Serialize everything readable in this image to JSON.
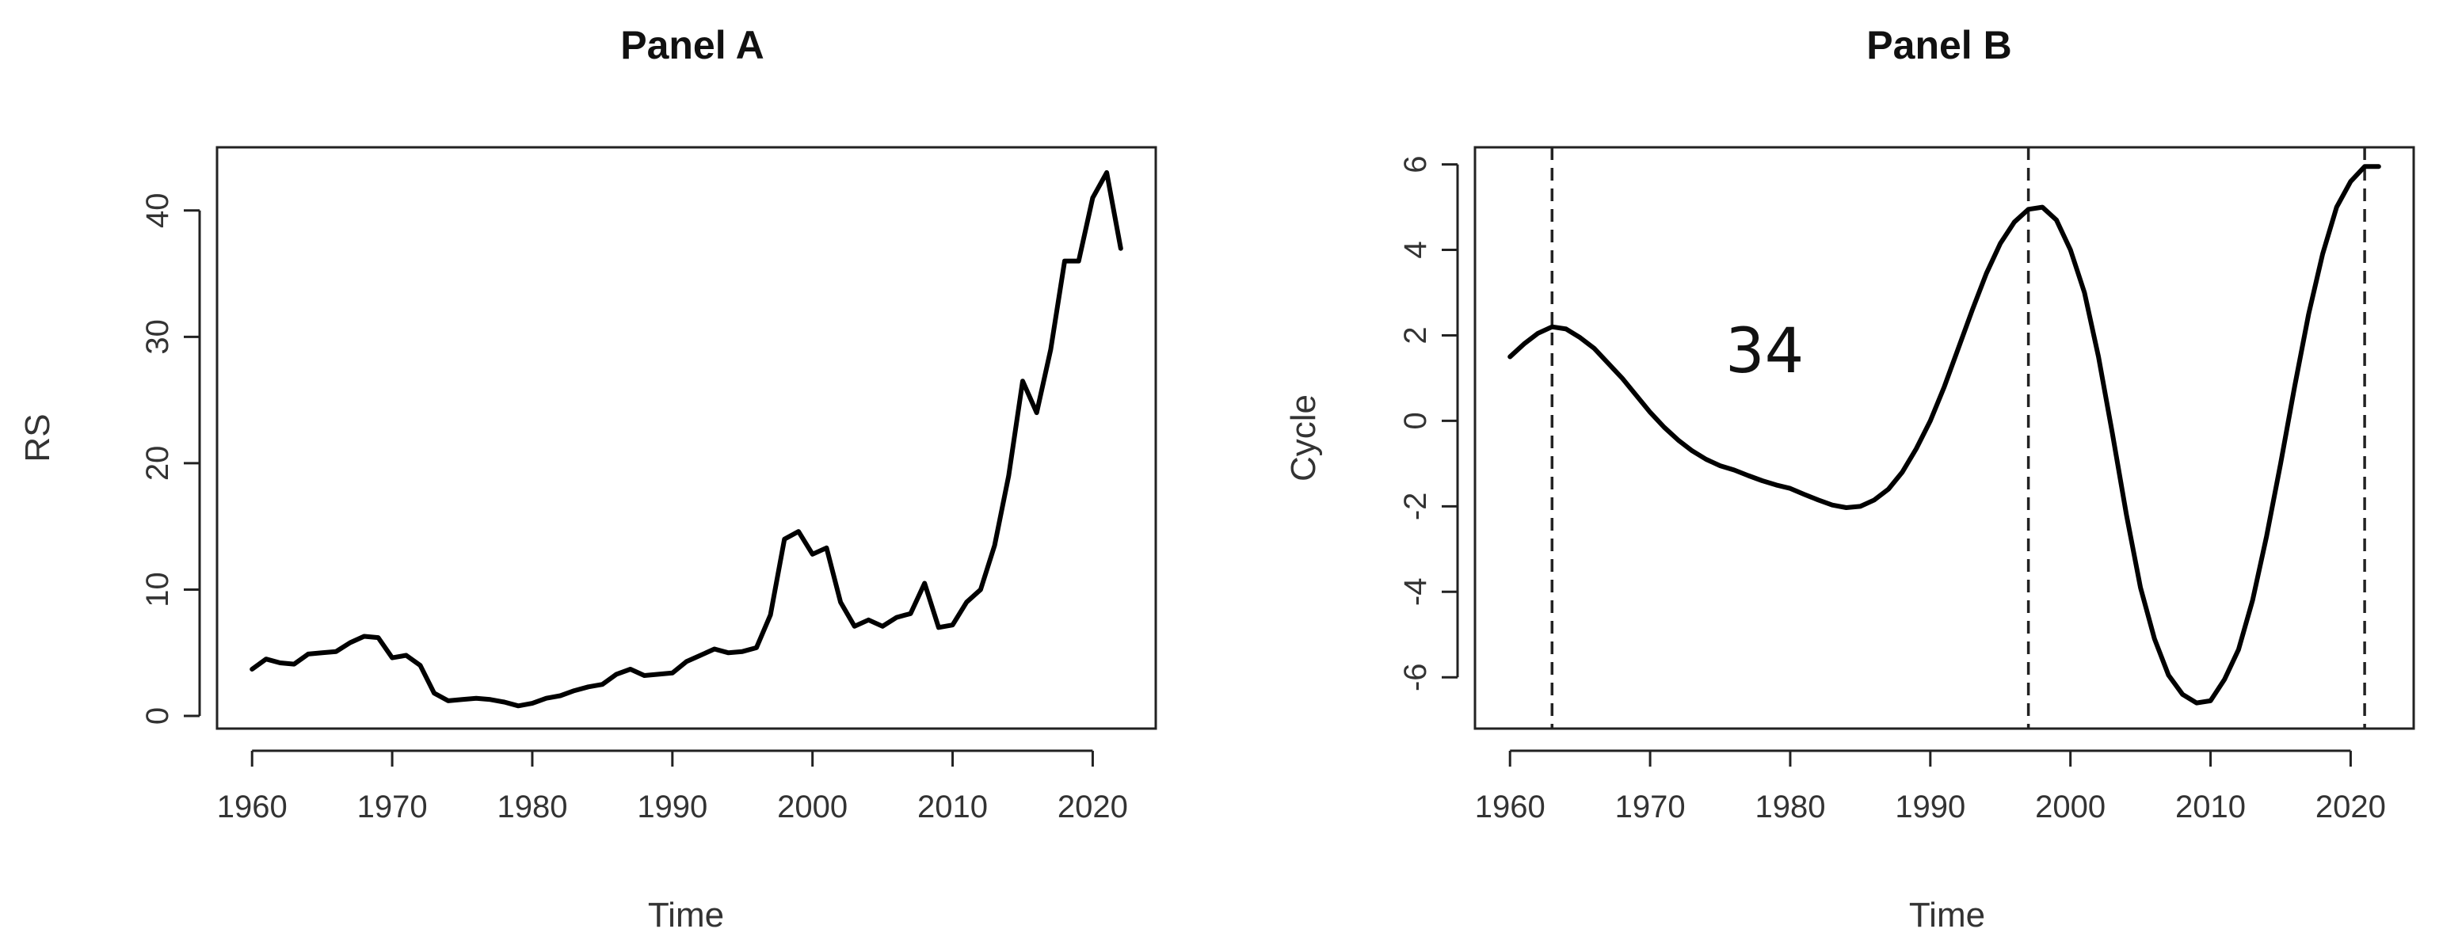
{
  "chart_data": [
    {
      "type": "line",
      "title": "Panel A",
      "xlabel": "Time",
      "ylabel": "RS",
      "xlim": [
        1957.5,
        2024.5
      ],
      "ylim": [
        -1,
        45
      ],
      "xticks": [
        1960,
        1970,
        1980,
        1990,
        2000,
        2010,
        2020
      ],
      "yticks": [
        0,
        10,
        20,
        30,
        40
      ],
      "grid": false,
      "series": [
        {
          "x": [
            1960,
            1961,
            1962,
            1963,
            1964,
            1965,
            1966,
            1967,
            1968,
            1969,
            1970,
            1971,
            1972,
            1973,
            1974,
            1975,
            1976,
            1977,
            1978,
            1979,
            1980,
            1981,
            1982,
            1983,
            1984,
            1985,
            1986,
            1987,
            1988,
            1989,
            1990,
            1991,
            1992,
            1993,
            1994,
            1995,
            1996,
            1997,
            1998,
            1999,
            2000,
            2001,
            2002,
            2003,
            2004,
            2005,
            2006,
            2007,
            2008,
            2009,
            2010,
            2011,
            2012,
            2013,
            2014,
            2015,
            2016,
            2017,
            2018,
            2019,
            2020,
            2021,
            2022
          ],
          "values": [
            3.7,
            4.5,
            4.2,
            4.1,
            4.9,
            5.0,
            5.1,
            5.8,
            6.3,
            6.2,
            4.6,
            4.8,
            4.0,
            1.8,
            1.2,
            1.3,
            1.4,
            1.3,
            1.1,
            0.8,
            1.0,
            1.4,
            1.6,
            2.0,
            2.3,
            2.5,
            3.3,
            3.7,
            3.2,
            3.3,
            3.4,
            4.3,
            4.8,
            5.3,
            5.0,
            5.1,
            5.4,
            8.0,
            14.0,
            14.6,
            12.8,
            13.3,
            9.0,
            7.1,
            7.6,
            7.1,
            7.8,
            8.1,
            10.5,
            7.0,
            7.2,
            9.0,
            10.0,
            13.5,
            19.0,
            26.5,
            24.0,
            29.0,
            36.0,
            36.0,
            41.0,
            43.0,
            37.0
          ]
        }
      ]
    },
    {
      "type": "line",
      "title": "Panel B",
      "xlabel": "Time",
      "ylabel": "Cycle",
      "xlim": [
        1957.5,
        2024.5
      ],
      "ylim": [
        -7.2,
        6.4
      ],
      "xticks": [
        1960,
        1970,
        1980,
        1990,
        2000,
        2010,
        2020
      ],
      "yticks": [
        -6,
        -4,
        -2,
        0,
        2,
        4,
        6
      ],
      "grid": false,
      "vlines": [
        1963,
        1997,
        2021
      ],
      "annotation": "34",
      "series": [
        {
          "x": [
            1960,
            1961,
            1962,
            1963,
            1964,
            1965,
            1966,
            1967,
            1968,
            1969,
            1970,
            1971,
            1972,
            1973,
            1974,
            1975,
            1976,
            1977,
            1978,
            1979,
            1980,
            1981,
            1982,
            1983,
            1984,
            1985,
            1986,
            1987,
            1988,
            1989,
            1990,
            1991,
            1992,
            1993,
            1994,
            1995,
            1996,
            1997,
            1998,
            1999,
            2000,
            2001,
            2002,
            2003,
            2004,
            2005,
            2006,
            2007,
            2008,
            2009,
            2010,
            2011,
            2012,
            2013,
            2014,
            2015,
            2016,
            2017,
            2018,
            2019,
            2020,
            2021,
            2022
          ],
          "values": [
            1.5,
            1.8,
            2.05,
            2.2,
            2.15,
            1.95,
            1.7,
            1.35,
            1.0,
            0.6,
            0.2,
            -0.15,
            -0.45,
            -0.7,
            -0.9,
            -1.05,
            -1.15,
            -1.28,
            -1.4,
            -1.5,
            -1.58,
            -1.72,
            -1.85,
            -1.97,
            -2.03,
            -2.0,
            -1.85,
            -1.6,
            -1.2,
            -0.65,
            0.0,
            0.8,
            1.7,
            2.6,
            3.45,
            4.15,
            4.65,
            4.95,
            5.0,
            4.7,
            4.0,
            3.0,
            1.5,
            -0.3,
            -2.2,
            -3.9,
            -5.1,
            -5.95,
            -6.4,
            -6.6,
            -6.55,
            -6.05,
            -5.35,
            -4.2,
            -2.7,
            -1.0,
            0.8,
            2.5,
            3.9,
            5.0,
            5.6,
            5.95,
            5.95
          ]
        }
      ]
    }
  ]
}
